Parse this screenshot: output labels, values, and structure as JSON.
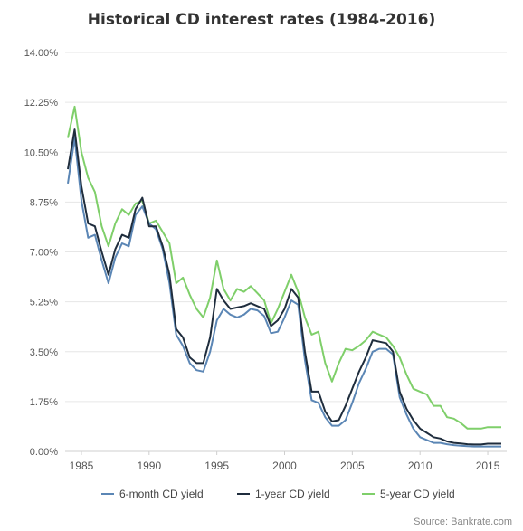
{
  "chart_data": {
    "type": "line",
    "title": "Historical CD interest rates (1984-2016)",
    "xlabel": "",
    "ylabel": "",
    "xlim": [
      1983.8,
      2016.4
    ],
    "ylim": [
      0,
      14
    ],
    "y_ticks": [
      "0.00%",
      "1.75%",
      "3.50%",
      "5.25%",
      "7.00%",
      "8.75%",
      "10.50%",
      "12.25%",
      "14.00%"
    ],
    "y_tick_values": [
      0,
      1.75,
      3.5,
      5.25,
      7.0,
      8.75,
      10.5,
      12.25,
      14.0
    ],
    "x_ticks": [
      "1985",
      "1990",
      "1995",
      "2000",
      "2005",
      "2010",
      "2015"
    ],
    "x_tick_values": [
      1985,
      1990,
      1995,
      2000,
      2005,
      2010,
      2015
    ],
    "grid": true,
    "legend_position": "bottom",
    "series": [
      {
        "name": "6-month CD yield",
        "color": "#5b86b5",
        "x": [
          1984,
          1984.5,
          1985,
          1985.5,
          1986,
          1986.5,
          1987,
          1987.5,
          1988,
          1988.5,
          1989,
          1989.5,
          1990,
          1990.5,
          1991,
          1991.5,
          1992,
          1992.5,
          1993,
          1993.5,
          1994,
          1994.5,
          1995,
          1995.5,
          1996,
          1996.5,
          1997,
          1997.5,
          1998,
          1998.5,
          1999,
          1999.5,
          2000,
          2000.5,
          2001,
          2001.5,
          2002,
          2002.5,
          2003,
          2003.5,
          2004,
          2004.5,
          2005,
          2005.5,
          2006,
          2006.5,
          2007,
          2007.5,
          2008,
          2008.5,
          2009,
          2009.5,
          2010,
          2010.5,
          2011,
          2011.5,
          2012,
          2012.5,
          2013,
          2013.5,
          2014,
          2014.5,
          2015,
          2015.5,
          2016
        ],
        "values": [
          9.4,
          11.0,
          8.8,
          7.5,
          7.6,
          6.7,
          5.9,
          6.8,
          7.3,
          7.2,
          8.3,
          8.6,
          8.0,
          7.8,
          7.1,
          5.9,
          4.1,
          3.7,
          3.1,
          2.85,
          2.8,
          3.5,
          4.6,
          5.0,
          4.8,
          4.7,
          4.8,
          5.0,
          4.95,
          4.75,
          4.15,
          4.2,
          4.7,
          5.3,
          5.15,
          3.2,
          1.8,
          1.7,
          1.2,
          0.9,
          0.9,
          1.1,
          1.7,
          2.4,
          2.9,
          3.5,
          3.6,
          3.6,
          3.4,
          1.9,
          1.3,
          0.8,
          0.5,
          0.4,
          0.3,
          0.3,
          0.25,
          0.22,
          0.2,
          0.18,
          0.17,
          0.17,
          0.17,
          0.17,
          0.17
        ]
      },
      {
        "name": "1-year CD yield",
        "color": "#1f2d3d",
        "x": [
          1984,
          1984.5,
          1985,
          1985.5,
          1986,
          1986.5,
          1987,
          1987.5,
          1988,
          1988.5,
          1989,
          1989.5,
          1990,
          1990.5,
          1991,
          1991.5,
          1992,
          1992.5,
          1993,
          1993.5,
          1994,
          1994.5,
          1995,
          1995.5,
          1996,
          1996.5,
          1997,
          1997.5,
          1998,
          1998.5,
          1999,
          1999.5,
          2000,
          2000.5,
          2001,
          2001.5,
          2002,
          2002.5,
          2003,
          2003.5,
          2004,
          2004.5,
          2005,
          2005.5,
          2006,
          2006.5,
          2007,
          2007.5,
          2008,
          2008.5,
          2009,
          2009.5,
          2010,
          2010.5,
          2011,
          2011.5,
          2012,
          2012.5,
          2013,
          2013.5,
          2014,
          2014.5,
          2015,
          2015.5,
          2016
        ],
        "values": [
          9.9,
          11.3,
          9.3,
          8.0,
          7.9,
          7.0,
          6.2,
          7.1,
          7.6,
          7.5,
          8.5,
          8.9,
          7.9,
          7.9,
          7.2,
          6.2,
          4.3,
          4.0,
          3.3,
          3.1,
          3.1,
          4.0,
          5.7,
          5.3,
          5.0,
          5.05,
          5.1,
          5.2,
          5.1,
          5.0,
          4.4,
          4.6,
          5.0,
          5.7,
          5.4,
          3.5,
          2.1,
          2.1,
          1.4,
          1.05,
          1.1,
          1.6,
          2.2,
          2.8,
          3.3,
          3.9,
          3.85,
          3.8,
          3.5,
          2.1,
          1.5,
          1.1,
          0.8,
          0.65,
          0.5,
          0.45,
          0.35,
          0.3,
          0.28,
          0.25,
          0.24,
          0.24,
          0.27,
          0.27,
          0.27
        ]
      },
      {
        "name": "5-year CD yield",
        "color": "#7fcf6a",
        "x": [
          1984,
          1984.5,
          1985,
          1985.5,
          1986,
          1986.5,
          1987,
          1987.5,
          1988,
          1988.5,
          1989,
          1989.5,
          1990,
          1990.5,
          1991,
          1991.5,
          1992,
          1992.5,
          1993,
          1993.5,
          1994,
          1994.5,
          1995,
          1995.5,
          1996,
          1996.5,
          1997,
          1997.5,
          1998,
          1998.5,
          1999,
          1999.5,
          2000,
          2000.5,
          2001,
          2001.5,
          2002,
          2002.5,
          2003,
          2003.5,
          2004,
          2004.5,
          2005,
          2005.5,
          2006,
          2006.5,
          2007,
          2007.5,
          2008,
          2008.5,
          2009,
          2009.5,
          2010,
          2010.5,
          2011,
          2011.5,
          2012,
          2012.5,
          2013,
          2013.5,
          2014,
          2014.5,
          2015,
          2015.5,
          2016
        ],
        "values": [
          11.0,
          12.1,
          10.5,
          9.6,
          9.1,
          7.9,
          7.2,
          8.0,
          8.5,
          8.3,
          8.7,
          8.8,
          8.0,
          8.1,
          7.7,
          7.3,
          5.9,
          6.1,
          5.5,
          5.0,
          4.7,
          5.4,
          6.7,
          5.7,
          5.3,
          5.7,
          5.6,
          5.8,
          5.55,
          5.3,
          4.5,
          5.0,
          5.6,
          6.2,
          5.6,
          4.7,
          4.1,
          4.2,
          3.1,
          2.45,
          3.1,
          3.6,
          3.55,
          3.7,
          3.9,
          4.2,
          4.1,
          4.0,
          3.7,
          3.3,
          2.7,
          2.2,
          2.1,
          2.0,
          1.6,
          1.6,
          1.2,
          1.15,
          1.0,
          0.8,
          0.8,
          0.8,
          0.85,
          0.85,
          0.85
        ]
      }
    ],
    "source": "Source: Bankrate.com"
  }
}
